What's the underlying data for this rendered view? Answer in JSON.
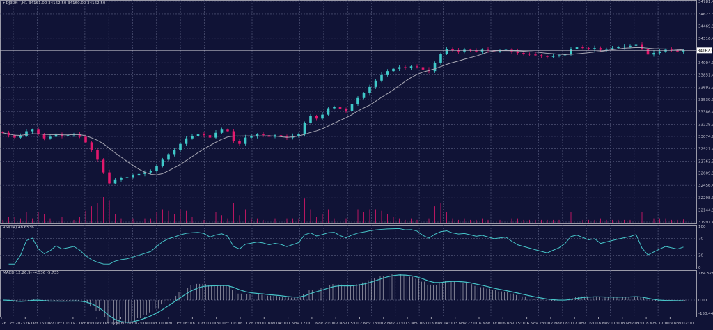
{
  "header": {
    "symbol": "DJ30ft+,H1",
    "ohlc": "34161.00 34162.50 34160.00 34162.50"
  },
  "rsi": {
    "label": "RSI(14) 48.6536",
    "levels": [
      "100",
      "70",
      "30",
      "0"
    ]
  },
  "macd": {
    "label": "MACD(12,26,9) -4.536 -5.735",
    "levels": [
      "184.578",
      "0.00",
      "-150.447"
    ]
  },
  "colors": {
    "background": "#101336",
    "bull": "#3fc9c9",
    "bear": "#e3186c",
    "grid": "#5c6183",
    "ma": "#a8a8b4",
    "indicator": "#46c4c8"
  },
  "chart_data": {
    "type": "candlestick",
    "price_axis_labels": [
      "34781.45",
      "34623.35",
      "34469.90",
      "34316.45",
      "34004.90",
      "33851.45",
      "33693.35",
      "33539.90",
      "33386.45",
      "33228.35",
      "33074.90",
      "32921.45",
      "32763.35",
      "32609.90",
      "32456.45",
      "32298.35",
      "32144.90",
      "31991.45"
    ],
    "current_price": "34162.50",
    "ylim": [
      31991.45,
      34781.45
    ],
    "x_labels": [
      "26 Oct 2023",
      "26 Oct 16:00",
      "27 Oct 01:00",
      "27 Oct 09:00",
      "27 Oct 17:00",
      "30 Oct 02:00",
      "30 Oct 10:00",
      "30 Oct 18:00",
      "31 Oct 03:00",
      "31 Oct 11:00",
      "31 Oct 19:00",
      "1 Nov 04:00",
      "1 Nov 12:00",
      "1 Nov 20:00",
      "2 Nov 05:00",
      "2 Nov 13:00",
      "2 Nov 21:00",
      "3 Nov 06:00",
      "3 Nov 14:00",
      "3 Nov 22:00",
      "6 Nov 07:00",
      "6 Nov 15:00",
      "6 Nov 23:00",
      "7 Nov 08:00",
      "7 Nov 16:00",
      "8 Nov 01:00",
      "8 Nov 09:00",
      "8 Nov 17:00",
      "9 Nov 02:00"
    ],
    "closes": [
      33120,
      33090,
      33060,
      33080,
      33140,
      33160,
      33100,
      33050,
      33070,
      33110,
      33080,
      33090,
      33100,
      33070,
      33000,
      32900,
      32780,
      32620,
      32480,
      32530,
      32550,
      32560,
      32580,
      32600,
      32620,
      32640,
      32700,
      32780,
      32850,
      32900,
      32980,
      33050,
      33080,
      33100,
      33090,
      33060,
      33120,
      33160,
      33140,
      33020,
      32980,
      33060,
      33080,
      33100,
      33090,
      33070,
      33090,
      33080,
      33060,
      33080,
      33100,
      33250,
      33330,
      33300,
      33350,
      33430,
      33450,
      33420,
      33400,
      33480,
      33560,
      33620,
      33700,
      33780,
      33850,
      33900,
      33930,
      33950,
      33940,
      33960,
      33950,
      33920,
      33900,
      34000,
      34120,
      34180,
      34160,
      34150,
      34170,
      34160,
      34150,
      34170,
      34160,
      34150,
      34160,
      34170,
      34150,
      34130,
      34120,
      34110,
      34100,
      34090,
      34080,
      34090,
      34100,
      34120,
      34180,
      34200,
      34190,
      34180,
      34190,
      34170,
      34180,
      34190,
      34200,
      34210,
      34220,
      34240,
      34180,
      34110,
      34130,
      34150,
      34170,
      34160,
      34150,
      34162.5
    ]
  }
}
